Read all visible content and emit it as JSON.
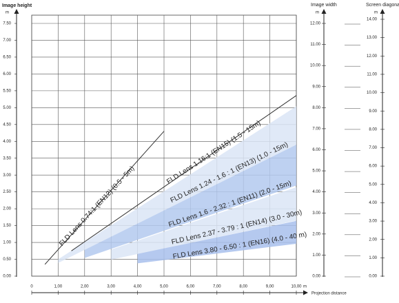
{
  "chart_data": {
    "type": "line",
    "y_label": "Image height",
    "y_unit": "m",
    "x_label": "Projection distance",
    "x_unit": "m",
    "xlim": [
      0,
      10
    ],
    "ylim": [
      0,
      7.5
    ],
    "xticks": [
      0,
      {
        "value": 1,
        "label": "1,00"
      },
      {
        "value": 2,
        "label": "2,00"
      },
      {
        "value": 3,
        "label": "3,00"
      },
      {
        "value": 4,
        "label": "4,00"
      },
      {
        "value": 5,
        "label": "5,00"
      },
      {
        "value": 6,
        "label": "6,00"
      },
      {
        "value": 7,
        "label": "7,00"
      },
      {
        "value": 8,
        "label": "8,00"
      },
      {
        "value": 9,
        "label": "9,00"
      },
      {
        "value": 10,
        "label": "10,00"
      }
    ],
    "yticks": [
      {
        "value": 0,
        "label": "0.00"
      },
      {
        "value": 0.5,
        "label": "0.50"
      },
      {
        "value": 1,
        "label": "1.00"
      },
      {
        "value": 1.5,
        "label": "1.50"
      },
      {
        "value": 2,
        "label": "2.00"
      },
      {
        "value": 2.5,
        "label": "2.50"
      },
      {
        "value": 3,
        "label": "3.00"
      },
      {
        "value": 3.5,
        "label": "3.50"
      },
      {
        "value": 4,
        "label": "4.00"
      },
      {
        "value": 4.5,
        "label": "4.50"
      },
      {
        "value": 5,
        "label": "5.00"
      },
      {
        "value": 5.5,
        "label": "5.50"
      },
      {
        "value": 6,
        "label": "6.00"
      },
      {
        "value": 6.5,
        "label": "6.50"
      },
      {
        "value": 7,
        "label": "7.00"
      },
      {
        "value": 7.5,
        "label": "7.50"
      }
    ],
    "grid": true,
    "extra_axes": [
      {
        "label": "Image width",
        "unit": "m",
        "lim": [
          0,
          12
        ],
        "ticks": [
          {
            "value": 0,
            "label": "0.00"
          },
          {
            "value": 1,
            "label": "1.00"
          },
          {
            "value": 2,
            "label": "2.00"
          },
          {
            "value": 3,
            "label": "3.00"
          },
          {
            "value": 4,
            "label": "4.00"
          },
          {
            "value": 5,
            "label": "5.00"
          },
          {
            "value": 6,
            "label": "6.00"
          },
          {
            "value": 7,
            "label": "7.00"
          },
          {
            "value": 8,
            "label": "8.00"
          },
          {
            "value": 9,
            "label": "9.00"
          },
          {
            "value": 10,
            "label": "10.00"
          },
          {
            "value": 11,
            "label": "11.00"
          },
          {
            "value": 12,
            "label": "12.00"
          }
        ]
      },
      {
        "label": "Screen diagonal",
        "unit": "m",
        "lim": [
          0,
          14
        ],
        "ticks": [
          {
            "value": 0,
            "label": "0.00"
          },
          {
            "value": 1,
            "label": "1.00"
          },
          {
            "value": 2,
            "label": "2.00"
          },
          {
            "value": 3,
            "label": "3.00"
          },
          {
            "value": 4,
            "label": "4.00"
          },
          {
            "value": 5,
            "label": "5.00"
          },
          {
            "value": 6,
            "label": "6.00"
          },
          {
            "value": 7,
            "label": "7.00"
          },
          {
            "value": 8,
            "label": "8.00"
          },
          {
            "value": 9,
            "label": "9.00"
          },
          {
            "value": 10,
            "label": "10.00"
          },
          {
            "value": 11,
            "label": "11.00"
          },
          {
            "value": 12,
            "label": "12.00"
          },
          {
            "value": 13,
            "label": "13.00"
          },
          {
            "value": 14,
            "label": "14.00"
          }
        ]
      }
    ],
    "series": [
      {
        "name": "FLD Lens 1.24 - 1.6 : 1 (EN13) (1.0 - 15m)",
        "kind": "band",
        "color": "#dbe5f6",
        "x": [
          1,
          10
        ],
        "upper": [
          0.5,
          5.04
        ],
        "lower": [
          0.39,
          3.9
        ]
      },
      {
        "name": "FLD Lens 1.6 - 2.32 : 1 (EN11) (2.0 - 15m)",
        "kind": "band",
        "color": "#b3c9ef",
        "x": [
          2,
          10
        ],
        "upper": [
          0.78,
          3.9
        ],
        "lower": [
          0.54,
          2.69
        ]
      },
      {
        "name": "FLD Lens 2.37 - 3.79 : 1 (EN14) (3.0 - 30m)",
        "kind": "band",
        "color": "#dbe5f6",
        "x": [
          3,
          10
        ],
        "upper": [
          0.79,
          2.64
        ],
        "lower": [
          0.49,
          1.65
        ]
      },
      {
        "name": "FLD Lens 3.80 - 6.50 : 1 (EN16) (4.0 - 40 m)",
        "kind": "band",
        "color": "#a8c0ec",
        "x": [
          4,
          10
        ],
        "upper": [
          0.66,
          1.64
        ],
        "lower": [
          0.38,
          0.96
        ]
      },
      {
        "name": "FLD Lens 0.74:1 (EN12) (0.5 - 5m)",
        "kind": "line",
        "color": "#333333",
        "x": [
          0.5,
          5
        ],
        "values": [
          0.35,
          4.3
        ]
      },
      {
        "name": "FLD Lens 1.16:1 (EN15) (1.5 - 15m)",
        "kind": "line",
        "color": "#333333",
        "x": [
          1.5,
          10
        ],
        "values": [
          0.75,
          5.36
        ]
      }
    ]
  }
}
